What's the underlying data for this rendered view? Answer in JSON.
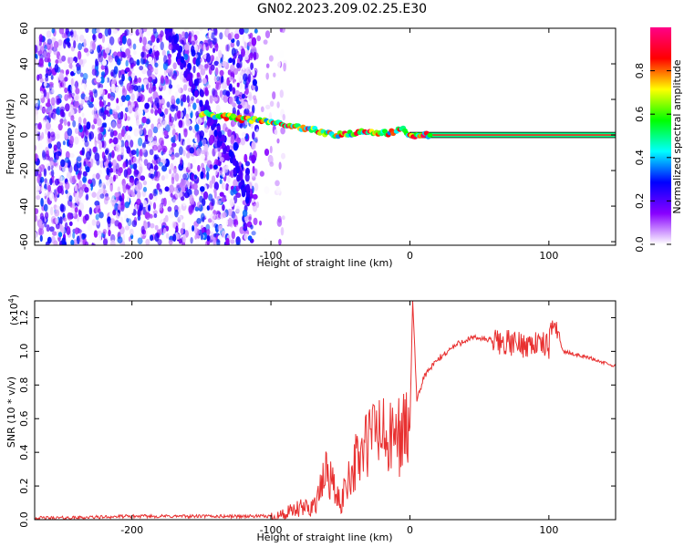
{
  "title": "GN02.2023.209.02.25.E30",
  "chart_data": [
    {
      "type": "heatmap",
      "xlabel": "Height of straight line (km)",
      "ylabel": "Frequency (Hz)",
      "xlim": [
        -270,
        148
      ],
      "ylim": [
        -62,
        60
      ],
      "x_ticks": [
        -200,
        -100,
        0,
        100
      ],
      "y_ticks": [
        -60,
        -40,
        -20,
        0,
        20,
        40,
        60
      ],
      "colorbar": {
        "label": "Normalized spectral amplitude",
        "range": [
          0.0,
          1.0
        ],
        "ticks": [
          0.0,
          0.2,
          0.4,
          0.6,
          0.8
        ],
        "colors": [
          "#ffffff",
          "#8800ff",
          "#0000ff",
          "#00ffff",
          "#00ff00",
          "#ffff00",
          "#ff0000",
          "#ff0088"
        ]
      },
      "ridge": {
        "x": [
          -150,
          -130,
          -110,
          -90,
          -70,
          -55,
          -45,
          -30,
          -15,
          -5,
          0,
          20,
          60,
          100,
          148
        ],
        "y": [
          12,
          10,
          8,
          6,
          3,
          0,
          1,
          2,
          1,
          3,
          0,
          0,
          0,
          0,
          0
        ]
      }
    },
    {
      "type": "line",
      "xlabel": "Height of straight line (km)",
      "ylabel": "SNR (10 * v/v)",
      "y_multiplier": "(x10",
      "y_multiplier_exp": "4",
      "xlim": [
        -270,
        148
      ],
      "ylim": [
        0,
        1.3
      ],
      "x_ticks": [
        -200,
        -100,
        0,
        100
      ],
      "y_ticks": [
        0.0,
        0.2,
        0.4,
        0.6,
        0.8,
        1.0,
        1.2
      ],
      "color": "#e83030",
      "series": [
        {
          "x": [
            -270,
            -250,
            -200,
            -150,
            -100,
            -90,
            -80,
            -70,
            -65,
            -60,
            -55,
            -50,
            -45,
            -40,
            -35,
            -30,
            -25,
            -20,
            -15,
            -10,
            -5,
            0,
            2,
            5,
            10,
            20,
            30,
            40,
            50,
            60,
            70,
            80,
            90,
            100,
            104,
            110,
            120,
            130,
            140,
            148
          ],
          "y": [
            0.01,
            0.01,
            0.02,
            0.02,
            0.02,
            0.03,
            0.06,
            0.08,
            0.15,
            0.3,
            0.2,
            0.08,
            0.25,
            0.32,
            0.4,
            0.45,
            0.55,
            0.5,
            0.45,
            0.5,
            0.52,
            0.55,
            1.3,
            0.7,
            0.85,
            0.95,
            1.02,
            1.07,
            1.08,
            1.06,
            1.05,
            1.04,
            1.05,
            1.03,
            1.2,
            1.0,
            0.98,
            0.96,
            0.93,
            0.91
          ]
        }
      ]
    }
  ]
}
